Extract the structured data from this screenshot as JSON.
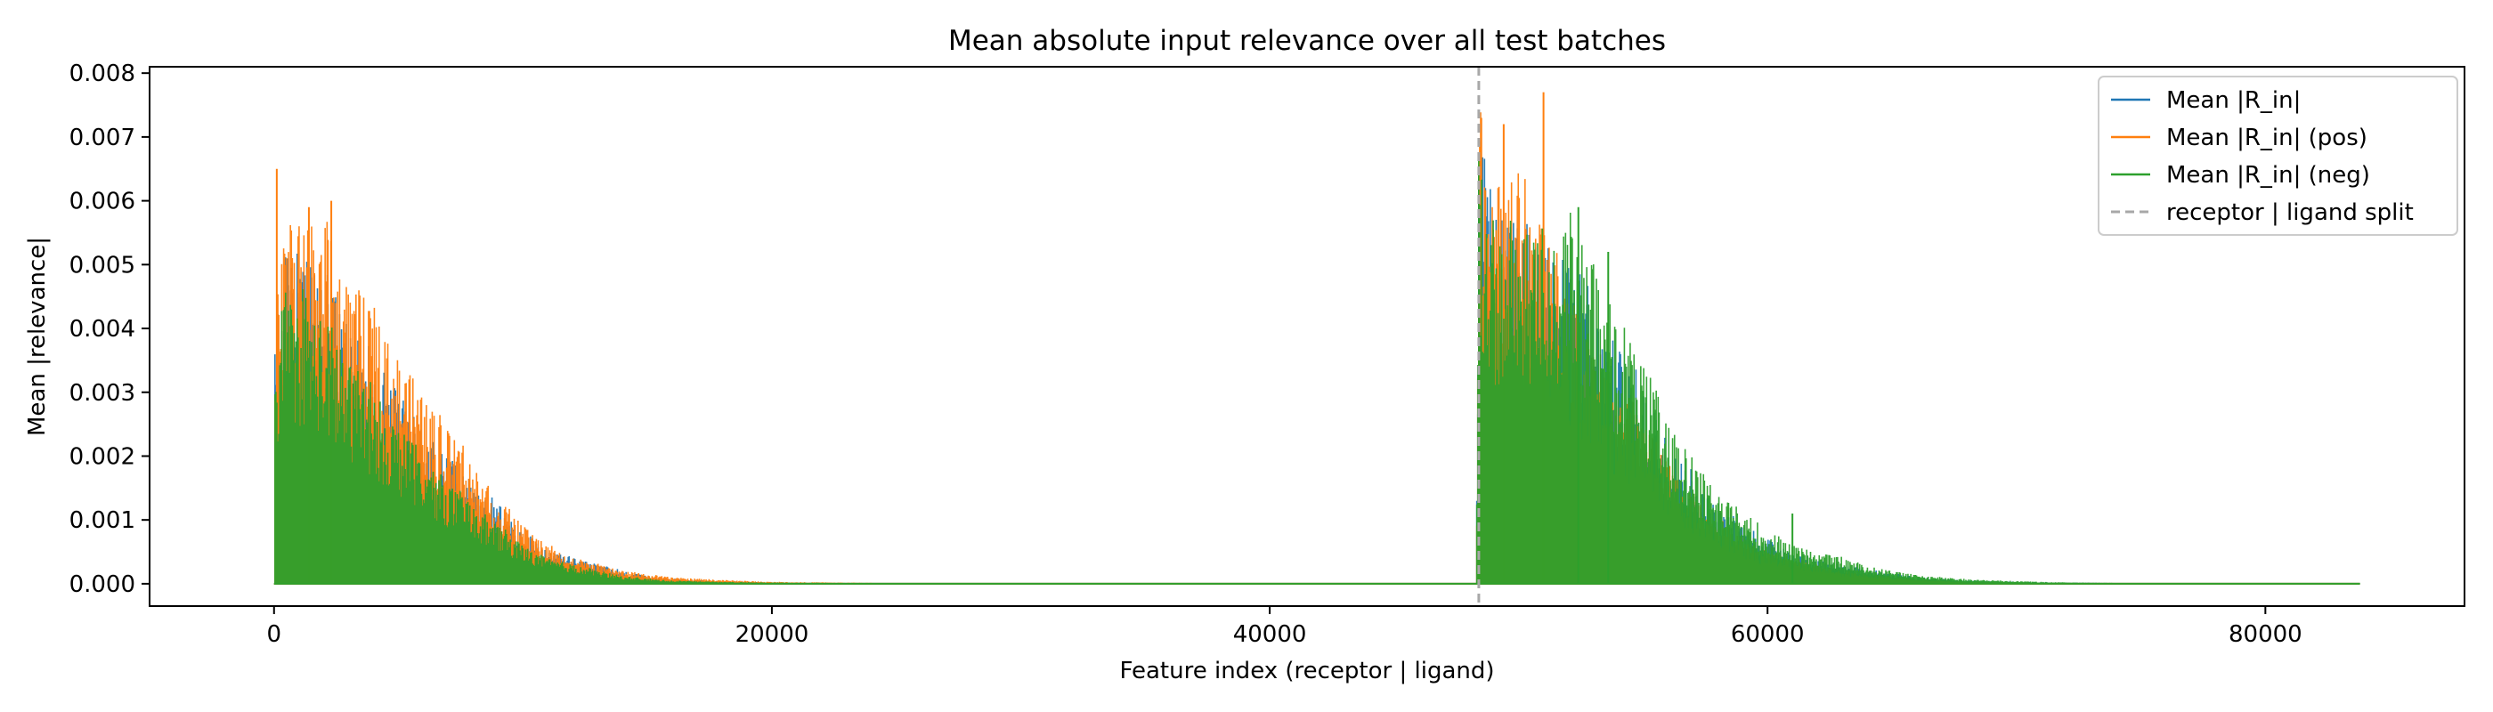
{
  "chart_data": {
    "type": "line",
    "title": "Mean absolute input relevance over all test batches",
    "xlabel": "Feature index (receptor | ligand)",
    "ylabel": "Mean |relevance|",
    "xlim": [
      -5000,
      88000
    ],
    "ylim": [
      -0.00035,
      0.0081
    ],
    "x_ticks": [
      {
        "value": 0,
        "label": "0"
      },
      {
        "value": 20000,
        "label": "20000"
      },
      {
        "value": 40000,
        "label": "40000"
      },
      {
        "value": 60000,
        "label": "60000"
      },
      {
        "value": 80000,
        "label": "80000"
      }
    ],
    "y_ticks": [
      {
        "value": 0.0,
        "label": "0.000"
      },
      {
        "value": 0.001,
        "label": "0.001"
      },
      {
        "value": 0.002,
        "label": "0.002"
      },
      {
        "value": 0.003,
        "label": "0.003"
      },
      {
        "value": 0.004,
        "label": "0.004"
      },
      {
        "value": 0.005,
        "label": "0.005"
      },
      {
        "value": 0.006,
        "label": "0.006"
      },
      {
        "value": 0.007,
        "label": "0.007"
      },
      {
        "value": 0.008,
        "label": "0.008"
      }
    ],
    "grid": false,
    "legend_position": "top-right",
    "x_max_feature": 83800,
    "split_x": 48400,
    "series": [
      {
        "name": "Mean |R_in|",
        "color": "#1f77b4",
        "envelope": [
          [
            0,
            0.0035
          ],
          [
            200,
            0.0045
          ],
          [
            500,
            0.0052
          ],
          [
            1000,
            0.0051
          ],
          [
            2000,
            0.0048
          ],
          [
            3000,
            0.004
          ],
          [
            4000,
            0.0035
          ],
          [
            5000,
            0.003
          ],
          [
            6000,
            0.0024
          ],
          [
            7000,
            0.002
          ],
          [
            8000,
            0.0016
          ],
          [
            9000,
            0.0012
          ],
          [
            10000,
            0.0008
          ],
          [
            11000,
            0.0005
          ],
          [
            12000,
            0.0004
          ],
          [
            13000,
            0.0003
          ],
          [
            14000,
            0.0002
          ],
          [
            15000,
            0.00012
          ],
          [
            16000,
            8e-05
          ],
          [
            18000,
            4e-05
          ],
          [
            20000,
            2e-05
          ],
          [
            25000,
            8e-06
          ],
          [
            30000,
            4e-06
          ],
          [
            40000,
            2e-06
          ],
          [
            48300,
            2e-06
          ],
          [
            48400,
            0.007
          ],
          [
            49000,
            0.0058
          ],
          [
            50000,
            0.0056
          ],
          [
            51000,
            0.0054
          ],
          [
            52000,
            0.005
          ],
          [
            53000,
            0.0043
          ],
          [
            54000,
            0.0037
          ],
          [
            55000,
            0.003
          ],
          [
            56000,
            0.0022
          ],
          [
            57000,
            0.0017
          ],
          [
            58000,
            0.0012
          ],
          [
            59000,
            0.0009
          ],
          [
            60000,
            0.0007
          ],
          [
            61000,
            0.0005
          ],
          [
            62000,
            0.0004
          ],
          [
            63000,
            0.0003
          ],
          [
            64000,
            0.00022
          ],
          [
            65000,
            0.00016
          ],
          [
            66000,
            0.0001
          ],
          [
            67000,
            8e-05
          ],
          [
            68000,
            5e-05
          ],
          [
            70000,
            3e-05
          ],
          [
            72000,
            2e-05
          ],
          [
            75000,
            1e-05
          ],
          [
            80000,
            5e-06
          ],
          [
            83800,
            4e-06
          ]
        ]
      },
      {
        "name": "Mean |R_in| (pos)",
        "color": "#ff7f0e",
        "envelope": [
          [
            0,
            0.0038
          ],
          [
            200,
            0.0048
          ],
          [
            500,
            0.0058
          ],
          [
            1000,
            0.0057
          ],
          [
            2000,
            0.0056
          ],
          [
            3000,
            0.0047
          ],
          [
            4000,
            0.0042
          ],
          [
            5000,
            0.0036
          ],
          [
            6000,
            0.0029
          ],
          [
            7000,
            0.0024
          ],
          [
            8000,
            0.0019
          ],
          [
            9000,
            0.0013
          ],
          [
            10000,
            0.0009
          ],
          [
            11000,
            0.0006
          ],
          [
            12000,
            0.0004
          ],
          [
            13000,
            0.0003
          ],
          [
            14000,
            0.0002
          ],
          [
            15000,
            0.00015
          ],
          [
            16000,
            0.0001
          ],
          [
            18000,
            6e-05
          ],
          [
            20000,
            3e-05
          ],
          [
            25000,
            1e-05
          ],
          [
            30000,
            5e-06
          ],
          [
            40000,
            2e-06
          ],
          [
            48300,
            2e-06
          ],
          [
            48400,
            0.0072
          ],
          [
            49000,
            0.006
          ],
          [
            50000,
            0.0062
          ],
          [
            51000,
            0.0056
          ],
          [
            52000,
            0.0044
          ],
          [
            53000,
            0.0036
          ],
          [
            54000,
            0.003
          ],
          [
            55000,
            0.0026
          ],
          [
            56000,
            0.0019
          ],
          [
            57000,
            0.0014
          ],
          [
            58000,
            0.001
          ],
          [
            59000,
            0.0007
          ],
          [
            60000,
            0.0005
          ],
          [
            61000,
            0.0004
          ],
          [
            62000,
            0.0003
          ],
          [
            63000,
            0.0002
          ],
          [
            64000,
            0.00015
          ],
          [
            65000,
            0.0001
          ],
          [
            66000,
            7e-05
          ],
          [
            67000,
            5e-05
          ],
          [
            68000,
            3e-05
          ],
          [
            70000,
            2e-05
          ],
          [
            72000,
            1e-05
          ],
          [
            75000,
            6e-06
          ],
          [
            80000,
            4e-06
          ],
          [
            83800,
            3e-06
          ]
        ],
        "peaks": [
          [
            110,
            0.0065
          ],
          [
            1400,
            0.0059
          ],
          [
            2300,
            0.006
          ],
          [
            51000,
            0.0077
          ],
          [
            49400,
            0.0072
          ],
          [
            48500,
            0.0073
          ]
        ]
      },
      {
        "name": "Mean |R_in| (neg)",
        "color": "#2ca02c",
        "envelope": [
          [
            0,
            0.0032
          ],
          [
            200,
            0.0042
          ],
          [
            500,
            0.0046
          ],
          [
            1000,
            0.0045
          ],
          [
            2000,
            0.0042
          ],
          [
            3000,
            0.0035
          ],
          [
            4000,
            0.003
          ],
          [
            5000,
            0.0025
          ],
          [
            6000,
            0.002
          ],
          [
            7000,
            0.0016
          ],
          [
            8000,
            0.0012
          ],
          [
            9000,
            0.0009
          ],
          [
            10000,
            0.0006
          ],
          [
            11000,
            0.0004
          ],
          [
            12000,
            0.0003
          ],
          [
            13000,
            0.0002
          ],
          [
            14000,
            0.00012
          ],
          [
            15000,
            8e-05
          ],
          [
            16000,
            5e-05
          ],
          [
            18000,
            3e-05
          ],
          [
            20000,
            2e-05
          ],
          [
            25000,
            8e-06
          ],
          [
            30000,
            4e-06
          ],
          [
            40000,
            2e-06
          ],
          [
            48300,
            2e-06
          ],
          [
            48400,
            0.0068
          ],
          [
            49000,
            0.0056
          ],
          [
            50000,
            0.0054
          ],
          [
            51000,
            0.0054
          ],
          [
            52000,
            0.0056
          ],
          [
            53000,
            0.0048
          ],
          [
            54000,
            0.0042
          ],
          [
            55000,
            0.0034
          ],
          [
            56000,
            0.0025
          ],
          [
            57000,
            0.0019
          ],
          [
            58000,
            0.0014
          ],
          [
            59000,
            0.0011
          ],
          [
            60000,
            0.0008
          ],
          [
            61000,
            0.0006
          ],
          [
            62000,
            0.0005
          ],
          [
            63000,
            0.0004
          ],
          [
            64000,
            0.00028
          ],
          [
            65000,
            0.0002
          ],
          [
            66000,
            0.00014
          ],
          [
            67000,
            0.0001
          ],
          [
            68000,
            7e-05
          ],
          [
            70000,
            4e-05
          ],
          [
            72000,
            2e-05
          ],
          [
            75000,
            1e-05
          ],
          [
            80000,
            6e-06
          ],
          [
            83800,
            4e-06
          ]
        ],
        "peaks": [
          [
            52400,
            0.0059
          ],
          [
            53600,
            0.0052
          ],
          [
            61000,
            0.0011
          ]
        ]
      }
    ],
    "split_line": {
      "name": "receptor | ligand split",
      "color": "#a8a8a8",
      "style": "dashed"
    }
  }
}
